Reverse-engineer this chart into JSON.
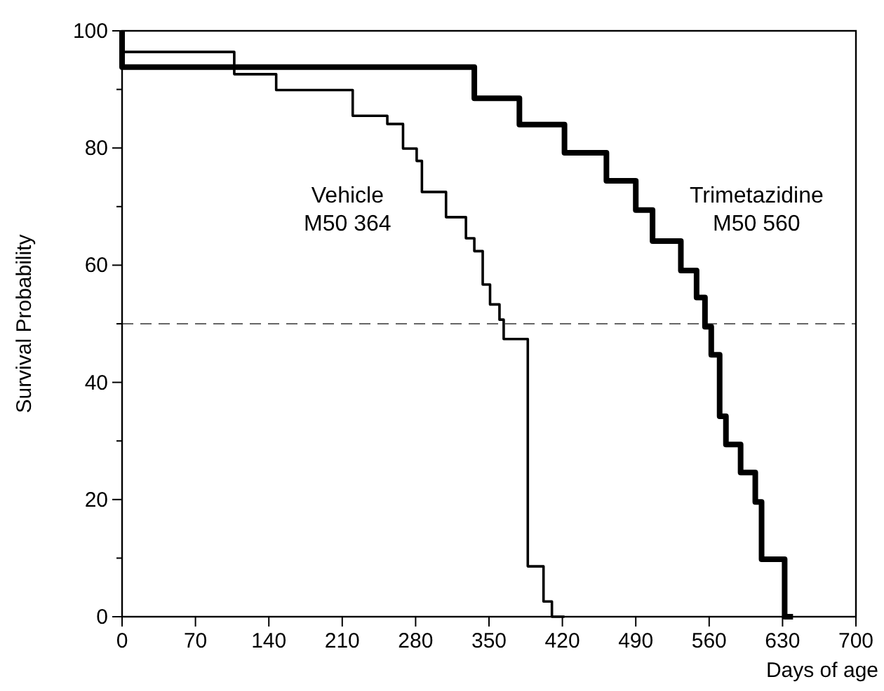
{
  "chart_data": {
    "type": "step",
    "xlabel": "Days of age",
    "ylabel": "Survival Probability",
    "xlim": [
      0,
      700
    ],
    "xticks": [
      0,
      70,
      140,
      210,
      280,
      350,
      420,
      490,
      560,
      630,
      700
    ],
    "ylim": [
      0,
      100
    ],
    "yticks": [
      0,
      {
        "value": 10,
        "label": null
      },
      20,
      {
        "value": 30,
        "label": null
      },
      40,
      {
        "value": 50,
        "label": null
      },
      60,
      {
        "value": 70,
        "label": null
      },
      80,
      {
        "value": 90,
        "label": null
      },
      100
    ],
    "grid": false,
    "legend": false,
    "marker": "none",
    "line_style": "solid",
    "ref_lines": [
      {
        "axis": "y",
        "value": 50,
        "color": "#666666",
        "line_style": "dashed"
      }
    ],
    "series": [
      {
        "name": "Vehicle M50 364",
        "color": "#000000",
        "x": [
          0,
          0,
          107,
          147,
          220,
          253,
          268,
          281,
          286,
          309,
          328,
          336,
          344,
          351,
          360,
          364,
          387,
          402,
          410,
          422
        ],
        "values": [
          100,
          96.4,
          92.6,
          89.9,
          85.5,
          84.1,
          79.9,
          77.8,
          72.5,
          68.2,
          64.6,
          62.4,
          56.7,
          53.3,
          50.7,
          47.4,
          8.6,
          2.6,
          0,
          0
        ]
      },
      {
        "name": "Trimetazidine M50 560",
        "color": "#000000",
        "x": [
          0,
          0,
          336,
          379,
          422,
          462,
          490,
          506,
          533,
          548,
          556,
          562,
          570,
          576,
          590,
          604,
          610,
          632,
          640
        ],
        "values": [
          100,
          93.8,
          88.5,
          84,
          79.2,
          74.4,
          69.4,
          64.1,
          59.1,
          54.5,
          49.5,
          44.7,
          34.2,
          29.4,
          24.6,
          19.6,
          9.8,
          0,
          0
        ]
      }
    ]
  }
}
